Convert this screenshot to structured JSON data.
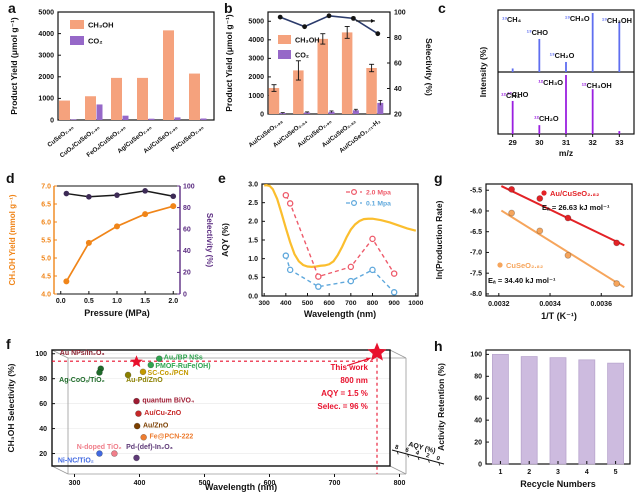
{
  "figure": {
    "background": "#ffffff"
  },
  "chart_data": [
    {
      "id": "a",
      "panel_label": "a",
      "type": "bar",
      "ylabel": "Product Yield (μmol g⁻¹)",
      "ylim": [
        0,
        5000
      ],
      "yticks": [
        0,
        1000,
        2000,
        3000,
        4000,
        5000
      ],
      "categories": [
        "CuSeO₂.₉₀",
        "CuOₓ/CuSeO₂.₉₀",
        "FeOₓ/CuSeO₂.₉₀",
        "Ag/CuSeO₂.₉₀",
        "Au/CuSeO₂.₉₀",
        "Pt/CuSeO₂.₉₀"
      ],
      "series": [
        {
          "name": "CH₃OH",
          "color": "#F5A27D",
          "values": [
            900,
            1100,
            1950,
            1950,
            4150,
            2150
          ]
        },
        {
          "name": "CO₂",
          "color": "#9668C8",
          "values": [
            30,
            720,
            200,
            60,
            120,
            70
          ]
        }
      ]
    },
    {
      "id": "b",
      "panel_label": "b",
      "type": "bar-line",
      "ylabel": "Product Yield (μmol g⁻¹)",
      "y2label": "Selectivity (%)",
      "ylim": [
        0,
        5500
      ],
      "yticks": [
        0,
        1000,
        2000,
        3000,
        4000,
        5000
      ],
      "y2lim": [
        20,
        100
      ],
      "y2ticks": [
        20,
        40,
        60,
        80,
        100
      ],
      "categories": [
        "Au/CuSeO₂.₉₈",
        "Au/CuSeO₂.₉₄",
        "Au/CuSeO₂.₉₀",
        "Au/CuSeO₂.₈₂",
        "Au/CuSeO₂.₇₁-H₂"
      ],
      "series": [
        {
          "name": "CH₃OH",
          "color": "#F5A27D",
          "values": [
            1400,
            2350,
            4050,
            4400,
            2480
          ],
          "errors": [
            180,
            520,
            280,
            320,
            200
          ]
        },
        {
          "name": "CO₂",
          "color": "#9668C8",
          "values": [
            50,
            80,
            120,
            200,
            600
          ],
          "errors": [
            25,
            35,
            45,
            55,
            130
          ]
        }
      ],
      "line": {
        "name": "Selectivity",
        "color": "#2B3B6B",
        "marker_color": "#141414",
        "values": [
          96,
          88.5,
          97,
          95,
          83
        ]
      }
    },
    {
      "id": "c",
      "panel_label": "c",
      "type": "mass-spectrum",
      "xlabel": "m/z",
      "ylabel": "Intensity (%)",
      "xlim": [
        28.45,
        33.55
      ],
      "xticks": [
        29,
        30,
        31,
        32,
        33
      ],
      "top": {
        "color": "#5F6EF0",
        "corner_iso": "¹³",
        "corner_mol": "CH₄",
        "peaks": [
          {
            "mz": 29,
            "h": 0.06
          },
          {
            "mz": 30,
            "h": 0.56,
            "iso": "¹³",
            "mol": "CHO"
          },
          {
            "mz": 31,
            "h": 0.17,
            "iso": "¹³",
            "mol": "CH₂O"
          },
          {
            "mz": 32,
            "h": 1.0,
            "iso": "¹³",
            "mol": "CH₃O"
          },
          {
            "mz": 33,
            "h": 0.85,
            "iso": "¹³",
            "mol": "CH₃OH"
          }
        ]
      },
      "bottom": {
        "color": "#9A1FE0",
        "corner_iso": "¹²",
        "corner_mol": "CH₄",
        "peaks": [
          {
            "mz": 29,
            "h": 0.56,
            "iso": "¹²",
            "mol": "CHO"
          },
          {
            "mz": 30,
            "h": 0.15,
            "iso": "¹²",
            "mol": "CH₂O"
          },
          {
            "mz": 31,
            "h": 1.0,
            "iso": "¹²",
            "mol": "CH₃O"
          },
          {
            "mz": 32,
            "h": 0.76,
            "iso": "¹²",
            "mol": "CH₃OH"
          },
          {
            "mz": 33,
            "h": 0.05
          }
        ]
      }
    },
    {
      "id": "d",
      "panel_label": "d",
      "type": "dual-line",
      "xlabel": "Pressure (MPa)",
      "ylabel": "CH₃OH Yield (mmol g⁻¹)",
      "y2label": "Selectivity (%)",
      "xlim": [
        -0.12,
        2.12
      ],
      "xticks": [
        0,
        0.5,
        1,
        1.5,
        2
      ],
      "xtick_labels": [
        "0.0",
        "0.5",
        "1.0",
        "1.5",
        "2.0"
      ],
      "ylim": [
        4,
        7
      ],
      "ytick_labels": [
        "4.0",
        "4.5",
        "5.0",
        "5.5",
        "6.0",
        "6.5",
        "7.0"
      ],
      "y2lim": [
        0,
        100
      ],
      "y2ticks": [
        0,
        20,
        40,
        60,
        80,
        100
      ],
      "yield": {
        "color": "#F08519",
        "x": [
          0.1,
          0.5,
          1,
          1.5,
          2
        ],
        "y": [
          4.35,
          5.42,
          5.88,
          6.22,
          6.44
        ]
      },
      "selectivity": {
        "line_color": "#1a1a1a",
        "marker_color": "#3D2B56",
        "x": [
          0.1,
          0.5,
          1,
          1.5,
          2
        ],
        "y": [
          93,
          90,
          91.5,
          95.5,
          90.5
        ]
      },
      "right_axis_color": "#5C2D82"
    },
    {
      "id": "e",
      "panel_label": "e",
      "type": "line",
      "xlabel": "Wavelength (nm)",
      "ylabel": "AQY (%)",
      "xlim": [
        290,
        1010
      ],
      "xticks": [
        300,
        400,
        500,
        600,
        700,
        800,
        900,
        1000
      ],
      "ylim": [
        0,
        3
      ],
      "ytick_labels": [
        "0.0",
        "0.5",
        "1.0",
        "1.5",
        "2.0",
        "2.5",
        "3.0"
      ],
      "absorption": {
        "color": "#FBBE2E",
        "x": [
          300,
          310,
          325,
          340,
          360,
          380,
          400,
          420,
          440,
          460,
          480,
          500,
          520,
          540,
          560,
          580,
          600,
          620,
          640,
          660,
          680,
          700,
          720,
          740,
          760,
          780,
          800,
          820,
          840,
          860,
          880,
          900,
          920,
          940,
          960,
          980,
          1000
        ],
        "y": [
          2.96,
          2.97,
          2.95,
          2.86,
          2.6,
          2.22,
          1.82,
          1.44,
          1.12,
          0.93,
          0.83,
          0.79,
          0.78,
          0.79,
          0.81,
          0.82,
          0.85,
          0.93,
          1.1,
          1.32,
          1.57,
          1.78,
          1.92,
          2.01,
          2.06,
          2.07,
          2.07,
          2.05,
          2.03,
          2.0,
          1.97,
          1.93,
          1.89,
          1.85,
          1.81,
          1.78,
          1.75
        ]
      },
      "series": [
        {
          "name": "2.0 Mpa",
          "color": "#EE5A6A",
          "x": [
            400,
            420,
            550,
            700,
            800,
            900
          ],
          "y": [
            2.7,
            2.48,
            0.52,
            0.78,
            1.53,
            0.6
          ]
        },
        {
          "name": "0.1 Mpa",
          "color": "#5FA8DC",
          "x": [
            400,
            420,
            550,
            700,
            800,
            900
          ],
          "y": [
            1.08,
            0.7,
            0.25,
            0.4,
            0.7,
            0.1
          ]
        }
      ]
    },
    {
      "id": "f",
      "panel_label": "f",
      "type": "scatter",
      "xlabel": "Wavelength (nm)",
      "ylabel": "CH₃OH Selectivity (%)",
      "zlabel": "AQY (%)",
      "xlim": [
        290,
        810
      ],
      "xticks": [
        300,
        400,
        500,
        600,
        700,
        800
      ],
      "ylim": [
        10,
        103
      ],
      "yticks": [
        20,
        40,
        60,
        80,
        100
      ],
      "zticks": [
        "8",
        "6",
        "4",
        "2",
        "0"
      ],
      "points": [
        {
          "name": "Au NPs/In₂O₃",
          "x": 365,
          "y": 88,
          "color": "#1F6B2A",
          "lcolor": "#8B2332",
          "lx": 302,
          "ly": 99,
          "anchor": "start"
        },
        {
          "name": "Auₓ/BP NSs",
          "x": 455,
          "y": 96,
          "color": "#2FA44F",
          "lcolor": "#2FA44F",
          "lx": 462,
          "ly": 95.5,
          "anchor": "start"
        },
        {
          "name": "PMOF-RuFe(OH)",
          "x": 442,
          "y": 91,
          "color": "#2FA44F",
          "lcolor": "#2FA44F",
          "lx": 449,
          "ly": 88.5,
          "anchor": "start"
        },
        {
          "name": "SC-Co₁/PCN",
          "x": 430,
          "y": 85.5,
          "color": "#C49A00",
          "lcolor": "#C49A00",
          "lx": 437,
          "ly": 83,
          "anchor": "start"
        },
        {
          "name": "Ag-CoOₓ/TiO₂",
          "x": 363,
          "y": 85,
          "color": "#1F6B2A",
          "lcolor": "#1F6B2A",
          "lx": 301,
          "ly": 77.5,
          "anchor": "start"
        },
        {
          "name": "Au-Pd/ZnO",
          "x": 407,
          "y": 83,
          "color": "#8B8000",
          "lcolor": "#8B8000",
          "lx": 404,
          "ly": 77.5,
          "anchor": "start"
        },
        {
          "name": "quantum BiVO₄",
          "x": 420,
          "y": 62,
          "color": "#9E1B32",
          "lcolor": "#9E1B32",
          "lx": 429,
          "ly": 61,
          "anchor": "start"
        },
        {
          "name": "Au/Cu-ZnO",
          "x": 423,
          "y": 52,
          "color": "#C62828",
          "lcolor": "#C62828",
          "lx": 432,
          "ly": 51,
          "anchor": "start"
        },
        {
          "name": "Au/ZnO",
          "x": 421,
          "y": 42,
          "color": "#7B3F00",
          "lcolor": "#7B3F00",
          "lx": 430,
          "ly": 41,
          "anchor": "start"
        },
        {
          "name": "Fe@PCN-222",
          "x": 431,
          "y": 33,
          "color": "#ED7D31",
          "lcolor": "#ED7D31",
          "lx": 440,
          "ly": 32,
          "anchor": "start"
        },
        {
          "name": "N-doped TiO₂",
          "x": 386,
          "y": 20,
          "color": "#F07E8A",
          "lcolor": "#F07E8A",
          "lx": 328,
          "ly": 23.5,
          "anchor": "start"
        },
        {
          "name": "Pd-(def)-In₂O₃",
          "x": 420,
          "y": 16.5,
          "color": "#5E3A78",
          "lcolor": "#5E3A78",
          "lx": 404,
          "ly": 23.5,
          "anchor": "start"
        },
        {
          "name": "Ni-NC/TiO₂",
          "x": 363,
          "y": 20,
          "color": "#4169E1",
          "lcolor": "#4169E1",
          "lx": 299,
          "ly": 13,
          "anchor": "start"
        }
      ],
      "this_work": {
        "color": "#E8112D",
        "lines": [
          "This work",
          "800 nm",
          "AQY = 1.5 %",
          "Selec. = 96 %"
        ],
        "star_small": {
          "x": 420,
          "y": 93.5
        },
        "star_big": {
          "x": 790,
          "y": 101
        },
        "dash_y": 94,
        "dash_x": 790
      }
    },
    {
      "id": "g",
      "panel_label": "g",
      "type": "arrhenius",
      "xlabel": "1/T (K⁻¹)",
      "ylabel": "ln(Production Rate)",
      "xlim": [
        0.00315,
        0.00372
      ],
      "xticks": [
        0.0032,
        0.0034,
        0.0036
      ],
      "xtick_labels": [
        "0.0032",
        "0.0034",
        "0.0036"
      ],
      "ylim": [
        -8.05,
        -5.35
      ],
      "yticks": [
        -5.5,
        -6,
        -6.5,
        -7,
        -7.5,
        -8
      ],
      "ytick_labels": [
        "-5.5",
        "-6.0",
        "-6.5",
        "-7.0",
        "-7.5",
        "-8.0"
      ],
      "series": [
        {
          "name": "Au/CuSeO₂.₈₂",
          "ea_label": "Eₐ = 26.63 kJ mol⁻¹",
          "color": "#E32226",
          "x": [
            0.00325,
            0.00336,
            0.00347,
            0.00366
          ],
          "y": [
            -5.48,
            -5.7,
            -6.17,
            -6.77
          ],
          "fit": [
            [
              0.00321,
              -5.4
            ],
            [
              0.00369,
              -6.83
            ]
          ]
        },
        {
          "name": "CuSeO₂.₈₂",
          "ea_label": "Eₐ = 34.40 kJ mol⁻¹",
          "color": "#F6A55C",
          "x": [
            0.00325,
            0.00336,
            0.00347,
            0.00366
          ],
          "y": [
            -6.05,
            -6.48,
            -7.07,
            -7.75
          ],
          "fit": [
            [
              0.00321,
              -5.99
            ],
            [
              0.00369,
              -7.84
            ]
          ]
        }
      ]
    },
    {
      "id": "h",
      "panel_label": "h",
      "type": "bar",
      "xlabel": "Recycle Numbers",
      "ylabel": "Activity Retention (%)",
      "categories": [
        "1",
        "2",
        "3",
        "4",
        "5"
      ],
      "values": [
        100,
        98,
        97,
        95,
        92
      ],
      "color": "#CDBBDF",
      "edge": "#B9A6CE",
      "ylim": [
        0,
        104
      ],
      "yticks": [
        0,
        20,
        40,
        60,
        80,
        100
      ]
    }
  ]
}
